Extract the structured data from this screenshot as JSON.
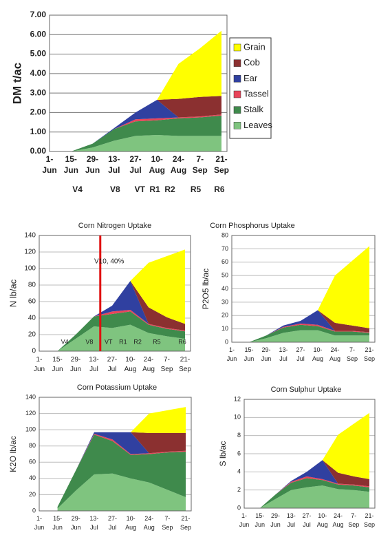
{
  "chart_data": [
    {
      "type": "stacked_area",
      "ylabel": "DM t/ac",
      "categories": [
        "1-Jun",
        "15-Jun",
        "29-Jun",
        "13-Jul",
        "27-Jul",
        "10-Aug",
        "24-Aug",
        "7-Sep",
        "21-Sep"
      ],
      "ylim": [
        0,
        7
      ],
      "yticks": [
        {
          "value": 0,
          "label": "0.00"
        },
        {
          "value": 1,
          "label": "1.00"
        },
        {
          "value": 2,
          "label": "2.00"
        },
        {
          "value": 3,
          "label": "3.00"
        },
        {
          "value": 4,
          "label": "4.00"
        },
        {
          "value": 5,
          "label": "5.00"
        },
        {
          "value": 6,
          "label": "6.00"
        },
        {
          "value": 7,
          "label": "7.00"
        }
      ],
      "grid": true,
      "legend": "right",
      "stages": [
        "V4",
        "V8",
        "VT",
        "R1",
        "R2",
        "R5",
        "R6"
      ],
      "series": [
        {
          "name": "Leaves",
          "color": "#7fc47f",
          "values": [
            null,
            0,
            0.2,
            0.55,
            0.8,
            0.85,
            0.8,
            0.8,
            0.8
          ]
        },
        {
          "name": "Stalk",
          "color": "#3f8a4c",
          "values": [
            null,
            0,
            0.2,
            0.6,
            0.75,
            0.75,
            0.9,
            0.95,
            1.05
          ]
        },
        {
          "name": "Tassel",
          "color": "#e8455a",
          "values": [
            null,
            0,
            0,
            0,
            0.1,
            0.1,
            0.05,
            0.05,
            0.05
          ]
        },
        {
          "name": "Ear",
          "color": "#3040a0",
          "values": [
            null,
            0,
            0,
            0.05,
            0.35,
            0.95,
            0,
            0,
            0
          ]
        },
        {
          "name": "Cob",
          "color": "#8b3030",
          "values": [
            null,
            0,
            0,
            0,
            0,
            0,
            0.95,
            1,
            0.95
          ]
        },
        {
          "name": "Grain",
          "color": "#ffff00",
          "values": [
            null,
            0,
            0,
            0,
            0,
            0,
            1.8,
            2.5,
            3.35
          ]
        }
      ]
    },
    {
      "type": "stacked_area",
      "title": "Corn Nitrogen Uptake",
      "ylabel": "N lb/ac",
      "categories": [
        "1-Jun",
        "15-Jun",
        "29-Jun",
        "13-Jul",
        "27-Jul",
        "10-Aug",
        "24-Aug",
        "7-Sep",
        "21-Sep"
      ],
      "ylim": [
        0,
        140
      ],
      "yticks": [
        0,
        20,
        40,
        60,
        80,
        100,
        120,
        140
      ],
      "grid": true,
      "stages": [
        "V4",
        "V8",
        "VT",
        "R1",
        "R2",
        "R5",
        "R6"
      ],
      "annotation": "V10, 40%",
      "marker_color": "#e01010",
      "series": [
        {
          "color": "#7fc47f",
          "values": [
            null,
            0,
            15,
            30,
            28,
            32,
            22,
            18,
            15
          ]
        },
        {
          "color": "#3f8a4c",
          "values": [
            null,
            0,
            5,
            12,
            17,
            16,
            10,
            9,
            9
          ]
        },
        {
          "color": "#e8455a",
          "values": [
            null,
            0,
            0,
            0,
            3,
            2,
            1,
            1,
            1
          ]
        },
        {
          "color": "#3040a0",
          "values": [
            null,
            0,
            0,
            0,
            7,
            35,
            0,
            0,
            0
          ]
        },
        {
          "color": "#8b3030",
          "values": [
            null,
            0,
            0,
            0,
            0,
            0,
            20,
            13,
            8
          ]
        },
        {
          "color": "#ffff00",
          "values": [
            null,
            0,
            0,
            0,
            0,
            0,
            54,
            74,
            90
          ]
        }
      ]
    },
    {
      "type": "stacked_area",
      "title": "Corn Phosphorus Uptake",
      "ylabel": "P2O5 lb/ac",
      "categories": [
        "1-Jun",
        "15-Jun",
        "29-Jun",
        "13-Jul",
        "27-Jul",
        "10-Aug",
        "24-Aug",
        "7-Sep",
        "21-Sep"
      ],
      "ylim": [
        0,
        80
      ],
      "yticks": [
        0,
        10,
        20,
        30,
        40,
        50,
        60,
        70,
        80
      ],
      "grid": true,
      "series": [
        {
          "color": "#7fc47f",
          "values": [
            null,
            0,
            3,
            7,
            9,
            9,
            5,
            5,
            5
          ]
        },
        {
          "color": "#3f8a4c",
          "values": [
            null,
            0,
            2,
            4,
            4,
            3,
            3,
            3,
            2
          ]
        },
        {
          "color": "#e8455a",
          "values": [
            null,
            0,
            0,
            0.5,
            1,
            1,
            0.5,
            0.5,
            0.5
          ]
        },
        {
          "color": "#3040a0",
          "values": [
            null,
            0,
            0,
            1,
            2,
            11,
            0,
            0,
            0
          ]
        },
        {
          "color": "#8b3030",
          "values": [
            null,
            0,
            0,
            0,
            0,
            0,
            6,
            4,
            3
          ]
        },
        {
          "color": "#ffff00",
          "values": [
            null,
            0,
            0,
            0,
            0,
            0,
            35.5,
            48.5,
            61.5
          ]
        }
      ]
    },
    {
      "type": "stacked_area",
      "title": "Corn Potassium Uptake",
      "ylabel": "K2O lb/ac",
      "categories": [
        "1-Jun",
        "15-Jun",
        "29-Jun",
        "13-Jul",
        "27-Jul",
        "10-Aug",
        "24-Aug",
        "7-Sep",
        "21-Sep"
      ],
      "ylim": [
        0,
        140
      ],
      "yticks": [
        0,
        20,
        40,
        60,
        80,
        100,
        120,
        140
      ],
      "grid": true,
      "series": [
        {
          "color": "#7fc47f",
          "values": [
            null,
            3,
            25,
            45,
            46,
            40,
            35,
            26,
            17
          ]
        },
        {
          "color": "#3f8a4c",
          "values": [
            null,
            2,
            25,
            49,
            40,
            29,
            35,
            46,
            56
          ]
        },
        {
          "color": "#e8455a",
          "values": [
            null,
            0,
            0,
            1,
            2,
            1,
            1,
            1,
            1
          ]
        },
        {
          "color": "#3040a0",
          "values": [
            null,
            0,
            0,
            2,
            9,
            27,
            0,
            0,
            0
          ]
        },
        {
          "color": "#8b3030",
          "values": [
            null,
            0,
            0,
            0,
            0,
            0,
            25,
            23,
            22
          ]
        },
        {
          "color": "#ffff00",
          "values": [
            null,
            0,
            0,
            0,
            0,
            0,
            24,
            28,
            32
          ]
        }
      ]
    },
    {
      "type": "stacked_area",
      "title": "Corn Sulphur Uptake",
      "ylabel": "S lb/ac",
      "categories": [
        "1-Jun",
        "15-Jun",
        "29-Jun",
        "13-Jul",
        "27-Jul",
        "10-Aug",
        "24-Aug",
        "7-Sep",
        "21-Sep"
      ],
      "ylim": [
        0,
        12
      ],
      "yticks": [
        0,
        2,
        4,
        6,
        8,
        10,
        12
      ],
      "grid": true,
      "series": [
        {
          "color": "#7fc47f",
          "values": [
            null,
            0,
            1,
            2,
            2.3,
            2.5,
            2.1,
            2,
            1.8
          ]
        },
        {
          "color": "#3f8a4c",
          "values": [
            null,
            0,
            0.5,
            0.8,
            1,
            0.6,
            0.5,
            0.5,
            0.5
          ]
        },
        {
          "color": "#e8455a",
          "values": [
            null,
            0,
            0,
            0.1,
            0.2,
            0.1,
            0.1,
            0.1,
            0.1
          ]
        },
        {
          "color": "#3040a0",
          "values": [
            null,
            0,
            0,
            0.1,
            0.5,
            2.1,
            0,
            0,
            0
          ]
        },
        {
          "color": "#8b3030",
          "values": [
            null,
            0,
            0,
            0,
            0,
            0,
            1.2,
            0.9,
            0.8
          ]
        },
        {
          "color": "#ffff00",
          "values": [
            null,
            0,
            0,
            0,
            0,
            0,
            4.2,
            5.8,
            7.3
          ]
        }
      ]
    }
  ]
}
